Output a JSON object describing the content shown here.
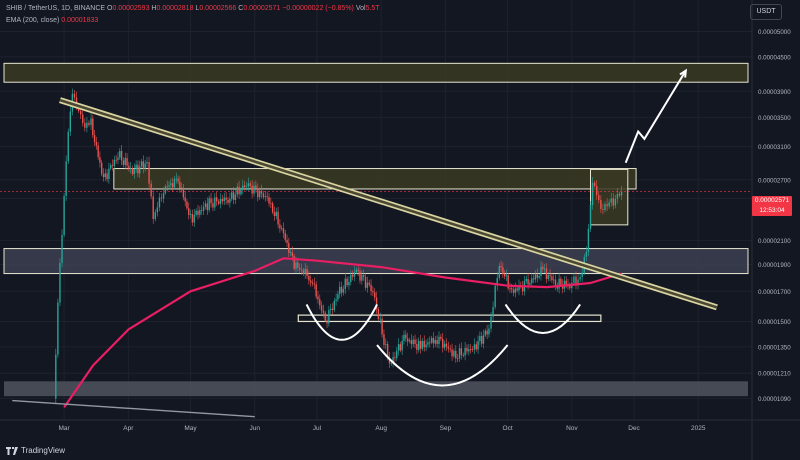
{
  "header": {
    "symbol": "SHIB / TetherUS, 1D, BINANCE",
    "o_label": "O",
    "o_val": "0.00002593",
    "h_label": "H",
    "h_val": "0.00002818",
    "l_label": "L",
    "l_val": "0.00002566",
    "c_label": "C",
    "c_val": "0.00002571",
    "change": "−0.00000022 (−0.85%)",
    "vol_label": "Vol",
    "vol_val": "5.5T",
    "ema_label": "EMA (200, close)",
    "ema_val": "0.00001833"
  },
  "currency_button": "USDT",
  "price_tag": {
    "price": "0.00002571",
    "countdown": "12:53:04"
  },
  "logo_text": "TradingView",
  "colors": {
    "background": "#131722",
    "ema": "#e91e63",
    "price_tag": "#f23645",
    "trendline": "#d9d4a1",
    "zone_dark": "#3a3a22"
  },
  "chart_data": {
    "type": "candlestick",
    "title": "SHIB / TetherUS, 1D, BINANCE",
    "x_tick_labels": [
      "Mar",
      "Apr",
      "May",
      "Jun",
      "Jul",
      "Aug",
      "Sep",
      "Oct",
      "Nov",
      "Dec",
      "2025"
    ],
    "y_tick_labels": [
      "0.00005000",
      "0.00004500",
      "0.00003900",
      "0.00003500",
      "0.00003100",
      "0.00002700",
      "0.00002500",
      "0.00002100",
      "0.00001900",
      "0.00001700",
      "0.00001500",
      "0.00001350",
      "0.00001210",
      "0.00001090"
    ],
    "y_scale": "log",
    "ylim": [
      1.03e-05,
      5.2e-05
    ],
    "price_path": [
      {
        "date": "2024-02-25",
        "close": 1.1e-05
      },
      {
        "date": "2024-02-28",
        "close": 1.9e-05
      },
      {
        "date": "2024-03-03",
        "close": 3.3e-05
      },
      {
        "date": "2024-03-05",
        "close": 3.9e-05
      },
      {
        "date": "2024-03-10",
        "close": 3.4e-05
      },
      {
        "date": "2024-03-14",
        "close": 3.4e-05
      },
      {
        "date": "2024-03-20",
        "close": 2.7e-05
      },
      {
        "date": "2024-03-27",
        "close": 3e-05
      },
      {
        "date": "2024-04-03",
        "close": 2.8e-05
      },
      {
        "date": "2024-04-10",
        "close": 2.9e-05
      },
      {
        "date": "2024-04-13",
        "close": 2.3e-05
      },
      {
        "date": "2024-04-18",
        "close": 2.6e-05
      },
      {
        "date": "2024-04-25",
        "close": 2.7e-05
      },
      {
        "date": "2024-05-01",
        "close": 2.3e-05
      },
      {
        "date": "2024-05-10",
        "close": 2.45e-05
      },
      {
        "date": "2024-05-20",
        "close": 2.5e-05
      },
      {
        "date": "2024-05-28",
        "close": 2.65e-05
      },
      {
        "date": "2024-06-07",
        "close": 2.5e-05
      },
      {
        "date": "2024-06-14",
        "close": 2.2e-05
      },
      {
        "date": "2024-06-20",
        "close": 1.9e-05
      },
      {
        "date": "2024-06-28",
        "close": 1.8e-05
      },
      {
        "date": "2024-07-05",
        "close": 1.5e-05
      },
      {
        "date": "2024-07-12",
        "close": 1.7e-05
      },
      {
        "date": "2024-07-20",
        "close": 1.85e-05
      },
      {
        "date": "2024-07-28",
        "close": 1.7e-05
      },
      {
        "date": "2024-08-05",
        "close": 1.25e-05
      },
      {
        "date": "2024-08-12",
        "close": 1.4e-05
      },
      {
        "date": "2024-08-20",
        "close": 1.35e-05
      },
      {
        "date": "2024-08-28",
        "close": 1.4e-05
      },
      {
        "date": "2024-09-06",
        "close": 1.3e-05
      },
      {
        "date": "2024-09-15",
        "close": 1.35e-05
      },
      {
        "date": "2024-09-22",
        "close": 1.45e-05
      },
      {
        "date": "2024-09-27",
        "close": 1.9e-05
      },
      {
        "date": "2024-10-03",
        "close": 1.7e-05
      },
      {
        "date": "2024-10-10",
        "close": 1.75e-05
      },
      {
        "date": "2024-10-18",
        "close": 1.85e-05
      },
      {
        "date": "2024-10-25",
        "close": 1.75e-05
      },
      {
        "date": "2024-10-31",
        "close": 1.75e-05
      },
      {
        "date": "2024-11-05",
        "close": 1.8e-05
      },
      {
        "date": "2024-11-08",
        "close": 2e-05
      },
      {
        "date": "2024-11-11",
        "close": 2.7e-05
      },
      {
        "date": "2024-11-15",
        "close": 2.4e-05
      },
      {
        "date": "2024-11-20",
        "close": 2.45e-05
      },
      {
        "date": "2024-11-25",
        "close": 2.57e-05
      }
    ],
    "ema_200": [
      {
        "date": "2024-03-01",
        "value": 1.05e-05
      },
      {
        "date": "2024-03-15",
        "value": 1.25e-05
      },
      {
        "date": "2024-04-01",
        "value": 1.45e-05
      },
      {
        "date": "2024-05-01",
        "value": 1.7e-05
      },
      {
        "date": "2024-06-01",
        "value": 1.85e-05
      },
      {
        "date": "2024-06-15",
        "value": 1.95e-05
      },
      {
        "date": "2024-07-01",
        "value": 1.93e-05
      },
      {
        "date": "2024-08-01",
        "value": 1.88e-05
      },
      {
        "date": "2024-09-01",
        "value": 1.8e-05
      },
      {
        "date": "2024-10-01",
        "value": 1.74e-05
      },
      {
        "date": "2024-10-20",
        "value": 1.73e-05
      },
      {
        "date": "2024-11-10",
        "value": 1.76e-05
      },
      {
        "date": "2024-11-25",
        "value": 1.83e-05
      }
    ],
    "zones": [
      {
        "kind": "resistance-dark",
        "from_date": "2024-01-01",
        "to_date": "2025-01-25",
        "low": 4.05e-05,
        "high": 4.38e-05
      },
      {
        "kind": "resistance-box",
        "from_date": "2024-03-25",
        "to_date": "2024-12-02",
        "low": 2.6e-05,
        "high": 2.83e-05
      },
      {
        "kind": "support-light",
        "from_date": "2024-01-01",
        "to_date": "2025-01-25",
        "low": 1.83e-05,
        "high": 2.03e-05
      },
      {
        "kind": "neckline-box",
        "from_date": "2024-06-22",
        "to_date": "2024-11-15",
        "low": 1.5e-05,
        "high": 1.54e-05
      },
      {
        "kind": "support-grey",
        "from_date": "2024-01-01",
        "to_date": "2025-01-25",
        "low": 1.1e-05,
        "high": 1.17e-05
      },
      {
        "kind": "current-range",
        "from_date": "2024-11-10",
        "to_date": "2024-11-28",
        "low": 2.24e-05,
        "high": 2.82e-05
      }
    ],
    "trendline": {
      "from_date": "2024-02-28",
      "from_value": 3.76e-05,
      "to_date": "2025-01-10",
      "to_value": 1.59e-05
    },
    "projection_arrow": [
      {
        "date": "2024-11-27",
        "value": 2.9e-05
      },
      {
        "date": "2024-12-03",
        "value": 3.3e-05
      },
      {
        "date": "2024-12-06",
        "value": 3.2e-05
      },
      {
        "date": "2024-12-26",
        "value": 4.25e-05
      }
    ],
    "arcs": [
      {
        "from_date": "2024-06-26",
        "to_date": "2024-07-30",
        "top_value": 1.61e-05,
        "bottom_value": 1.39e-05
      },
      {
        "from_date": "2024-07-30",
        "to_date": "2024-10-01",
        "top_value": 1.36e-05,
        "bottom_value": 1.15e-05
      },
      {
        "from_date": "2024-09-30",
        "to_date": "2024-11-05",
        "top_value": 1.61e-05,
        "bottom_value": 1.43e-05
      }
    ]
  }
}
